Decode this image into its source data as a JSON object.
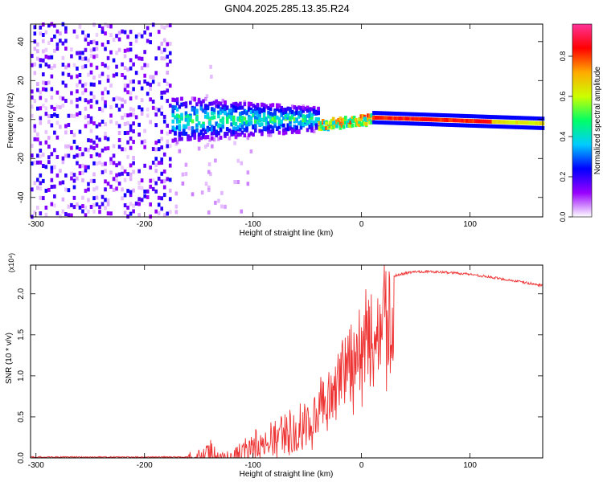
{
  "title": "GN04.2025.285.13.35.R24",
  "chart_data": [
    {
      "type": "heatmap",
      "panel": "top",
      "xlabel": "Height of straight line (km)",
      "ylabel": "Frequency (Hz)",
      "xlim": [
        -305,
        167
      ],
      "ylim": [
        -50,
        49
      ],
      "xticks": [
        -300,
        -200,
        -100,
        0,
        100
      ],
      "yticks": [
        -40,
        -20,
        0,
        20,
        40
      ],
      "colorbar": {
        "label": "Normalized spectral amplitude",
        "range": [
          0,
          0.96
        ],
        "ticks": [
          0.0,
          0.2,
          0.4,
          0.6,
          0.8
        ],
        "tick_labels": [
          "0.0",
          "0.2",
          "0.4",
          "0.6",
          "0.8"
        ],
        "colormap": [
          "#ffffff",
          "#9900ff",
          "#0000ff",
          "#00ccff",
          "#00ff66",
          "#ccff00",
          "#ffaa00",
          "#ff0000",
          "#ff3399"
        ]
      },
      "regions": [
        {
          "name": "noise",
          "x_range": [
            -305,
            -175
          ],
          "freq_range": [
            -50,
            49
          ],
          "amplitude": "0.05-0.25"
        },
        {
          "name": "sparse",
          "x_range": [
            -175,
            -100
          ],
          "freq_range": [
            -50,
            10
          ],
          "amplitude": "0.05-0.15"
        },
        {
          "name": "broad_signal",
          "x_range": [
            -175,
            -40
          ],
          "freq_range": [
            -10,
            12
          ],
          "amplitude": "0.1-0.5"
        },
        {
          "name": "converging",
          "x_range": [
            -40,
            10
          ],
          "freq_range": [
            -4,
            3
          ],
          "amplitude": "0.4-0.9"
        },
        {
          "name": "narrow_line",
          "x_range": [
            10,
            167
          ],
          "freq_center": [
            1,
            -2
          ],
          "amplitude": "0.6-0.9"
        }
      ]
    },
    {
      "type": "line",
      "panel": "bottom",
      "xlabel": "Height of straight line (km)",
      "ylabel": "SNR (10 * v/v)",
      "multiplier_label": "(x10⁴)",
      "xlim": [
        -305,
        167
      ],
      "ylim": [
        0,
        2.35
      ],
      "xticks": [
        -300,
        -200,
        -100,
        0,
        100
      ],
      "yticks": [
        0.0,
        0.5,
        1.0,
        1.5,
        2.0
      ],
      "ytick_labels": [
        "0.0",
        "0.5",
        "1.0",
        "1.5",
        "2.0"
      ],
      "color": "#ee3333",
      "series": [
        {
          "name": "SNR",
          "x": [
            -305,
            -200,
            -160,
            -150,
            -145,
            -140,
            -130,
            -120,
            -110,
            -100,
            -90,
            -80,
            -70,
            -60,
            -50,
            -40,
            -30,
            -20,
            -10,
            0,
            10,
            20,
            30,
            40,
            50,
            60,
            80,
            100,
            120,
            140,
            167
          ],
          "y": [
            0.01,
            0.01,
            0.01,
            0.05,
            0.12,
            0.2,
            0.04,
            0.08,
            0.15,
            0.25,
            0.32,
            0.38,
            0.45,
            0.52,
            0.62,
            0.78,
            1.0,
            1.25,
            1.5,
            1.7,
            1.92,
            2.1,
            2.22,
            2.25,
            2.27,
            2.27,
            2.26,
            2.24,
            2.2,
            2.16,
            2.1
          ]
        }
      ]
    }
  ]
}
